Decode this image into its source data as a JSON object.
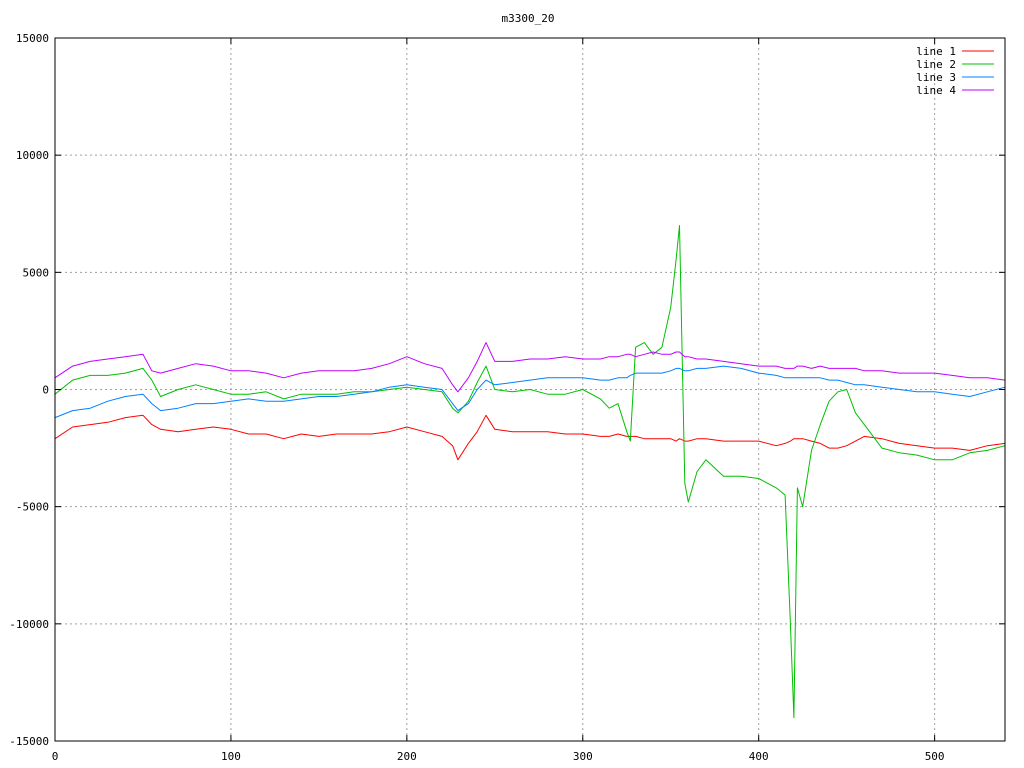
{
  "chart_data": {
    "type": "line",
    "title": "m3300_20",
    "xlabel": "",
    "ylabel": "",
    "xlim": [
      0,
      540
    ],
    "ylim": [
      -15000,
      15000
    ],
    "xticks": [
      0,
      100,
      200,
      300,
      400,
      500
    ],
    "xtick_labels": [
      "0",
      "100",
      "200",
      "300",
      "400",
      "500"
    ],
    "yticks": [
      -15000,
      -10000,
      -5000,
      0,
      5000,
      10000,
      15000
    ],
    "ytick_labels": [
      "-15000",
      "-10000",
      "-5000",
      "0",
      "5000",
      "10000",
      "15000"
    ],
    "grid": true,
    "legend_position": "top-right",
    "x": [
      0,
      10,
      20,
      30,
      40,
      50,
      55,
      60,
      70,
      80,
      90,
      100,
      110,
      120,
      130,
      140,
      150,
      160,
      170,
      180,
      190,
      200,
      210,
      220,
      226,
      229,
      235,
      240,
      245,
      250,
      260,
      270,
      280,
      290,
      300,
      310,
      315,
      320,
      325,
      327,
      330,
      335,
      340,
      345,
      350,
      353,
      355,
      358,
      360,
      365,
      370,
      380,
      390,
      400,
      410,
      415,
      418,
      420,
      422,
      425,
      430,
      435,
      440,
      445,
      450,
      455,
      460,
      470,
      480,
      490,
      500,
      510,
      520,
      530,
      540
    ],
    "series": [
      {
        "name": "line 1",
        "color": "#ff0000",
        "values": [
          -2100,
          -1600,
          -1500,
          -1400,
          -1200,
          -1100,
          -1500,
          -1700,
          -1800,
          -1700,
          -1600,
          -1700,
          -1900,
          -1900,
          -2100,
          -1900,
          -2000,
          -1900,
          -1900,
          -1900,
          -1800,
          -1600,
          -1800,
          -2000,
          -2400,
          -3000,
          -2300,
          -1800,
          -1100,
          -1700,
          -1800,
          -1800,
          -1800,
          -1900,
          -1900,
          -2000,
          -2000,
          -1900,
          -2000,
          -2000,
          -2000,
          -2100,
          -2100,
          -2100,
          -2100,
          -2200,
          -2100,
          -2200,
          -2200,
          -2100,
          -2100,
          -2200,
          -2200,
          -2200,
          -2400,
          -2300,
          -2200,
          -2100,
          -2100,
          -2100,
          -2200,
          -2300,
          -2500,
          -2500,
          -2400,
          -2200,
          -2000,
          -2100,
          -2300,
          -2400,
          -2500,
          -2500,
          -2600,
          -2400,
          -2300
        ]
      },
      {
        "name": "line 2",
        "color": "#00c000",
        "values": [
          -200,
          400,
          600,
          600,
          700,
          900,
          400,
          -300,
          0,
          200,
          0,
          -200,
          -200,
          -100,
          -400,
          -200,
          -200,
          -200,
          -100,
          -100,
          0,
          100,
          0,
          -100,
          -800,
          -1000,
          -500,
          300,
          1000,
          0,
          -100,
          0,
          -200,
          -200,
          0,
          -400,
          -800,
          -600,
          -1800,
          -2200,
          1800,
          2000,
          1500,
          1800,
          3500,
          5500,
          7000,
          -4000,
          -4800,
          -3500,
          -3000,
          -3700,
          -3700,
          -3800,
          -4200,
          -4500,
          -10000,
          -14000,
          -4200,
          -5000,
          -2600,
          -1500,
          -500,
          -100,
          0,
          -1000,
          -1500,
          -2500,
          -2700,
          -2800,
          -3000,
          -3000,
          -2700,
          -2600,
          -2400
        ]
      },
      {
        "name": "line 3",
        "color": "#0080ff",
        "values": [
          -1200,
          -900,
          -800,
          -500,
          -300,
          -200,
          -600,
          -900,
          -800,
          -600,
          -600,
          -500,
          -400,
          -500,
          -500,
          -400,
          -300,
          -300,
          -200,
          -100,
          100,
          200,
          100,
          0,
          -600,
          -900,
          -600,
          0,
          400,
          200,
          300,
          400,
          500,
          500,
          500,
          400,
          400,
          500,
          500,
          600,
          700,
          700,
          700,
          700,
          800,
          900,
          900,
          800,
          800,
          900,
          900,
          1000,
          900,
          700,
          600,
          500,
          500,
          500,
          500,
          500,
          500,
          500,
          400,
          400,
          300,
          200,
          200,
          100,
          0,
          -100,
          -100,
          -200,
          -300,
          -100,
          100
        ]
      },
      {
        "name": "line 4",
        "color": "#c000ff",
        "values": [
          500,
          1000,
          1200,
          1300,
          1400,
          1500,
          800,
          700,
          900,
          1100,
          1000,
          800,
          800,
          700,
          500,
          700,
          800,
          800,
          800,
          900,
          1100,
          1400,
          1100,
          900,
          200,
          -100,
          500,
          1200,
          2000,
          1200,
          1200,
          1300,
          1300,
          1400,
          1300,
          1300,
          1400,
          1400,
          1500,
          1500,
          1400,
          1500,
          1600,
          1500,
          1500,
          1600,
          1600,
          1400,
          1400,
          1300,
          1300,
          1200,
          1100,
          1000,
          1000,
          900,
          900,
          900,
          1000,
          1000,
          900,
          1000,
          900,
          900,
          900,
          900,
          800,
          800,
          700,
          700,
          700,
          600,
          500,
          500,
          400
        ]
      }
    ]
  }
}
